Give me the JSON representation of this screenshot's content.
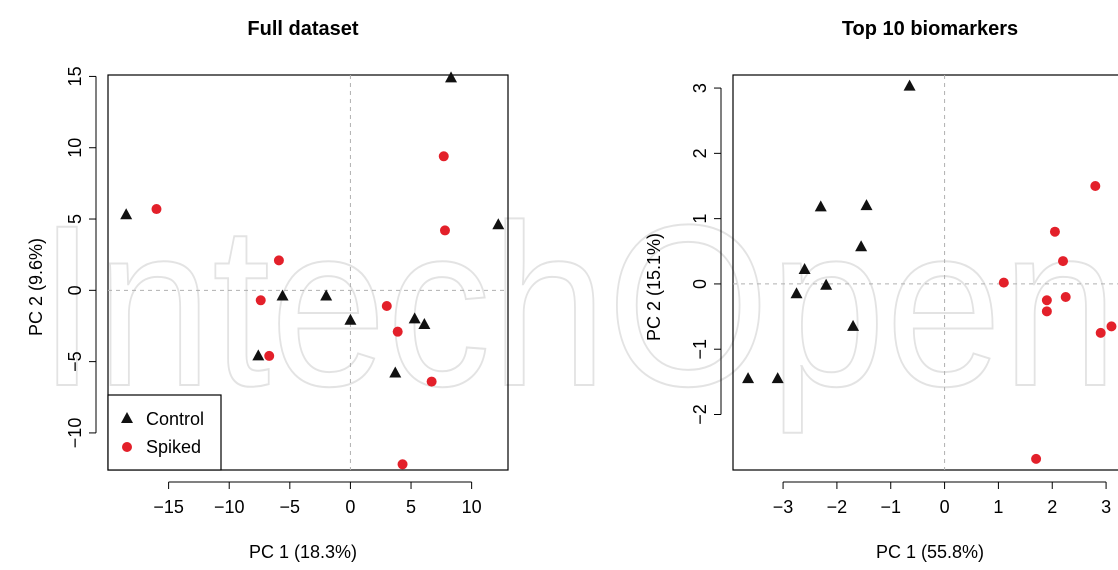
{
  "watermark": "IntechOpen",
  "legend": {
    "control_label": "Control",
    "spiked_label": "Spiked"
  },
  "colors": {
    "control": "#111111",
    "spiked": "#e3202a",
    "zero_line": "#b0b0b0"
  },
  "chart_data": [
    {
      "type": "scatter",
      "title": "Full dataset",
      "xlabel": "PC 1 (18.3%)",
      "ylabel": "PC 2 (9.6%)",
      "xlim": [
        -20,
        13
      ],
      "ylim": [
        -12.6,
        15.1
      ],
      "xticks": [
        -15,
        -10,
        -5,
        0,
        5,
        10
      ],
      "yticks": [
        -10,
        -5,
        0,
        5,
        10,
        15
      ],
      "legend_position": "bottom-left",
      "series": [
        {
          "name": "Control",
          "marker": "triangle",
          "points": [
            [
              -18.5,
              5.3
            ],
            [
              -7.6,
              -4.6
            ],
            [
              -5.6,
              -0.4
            ],
            [
              -2.0,
              -0.4
            ],
            [
              0.0,
              -2.1
            ],
            [
              3.7,
              -5.8
            ],
            [
              5.3,
              -2.0
            ],
            [
              6.1,
              -2.4
            ],
            [
              8.3,
              14.9
            ],
            [
              12.2,
              4.6
            ]
          ]
        },
        {
          "name": "Spiked",
          "marker": "circle",
          "points": [
            [
              -16.0,
              5.7
            ],
            [
              -7.4,
              -0.7
            ],
            [
              -6.7,
              -4.6
            ],
            [
              -5.9,
              2.1
            ],
            [
              3.0,
              -1.1
            ],
            [
              3.9,
              -2.9
            ],
            [
              4.3,
              -12.2
            ],
            [
              6.7,
              -6.4
            ],
            [
              7.7,
              9.4
            ],
            [
              7.8,
              4.2
            ]
          ]
        }
      ]
    },
    {
      "type": "scatter",
      "title": "Top 10 biomarkers",
      "xlabel": "PC 1 (55.8%)",
      "ylabel": "PC 2 (15.1%)",
      "xlim": [
        -3.93,
        3.5
      ],
      "ylim": [
        -2.85,
        3.2
      ],
      "xticks": [
        -3,
        -2,
        -1,
        0,
        1,
        2,
        3
      ],
      "yticks": [
        -2,
        -1,
        0,
        1,
        2,
        3
      ],
      "series": [
        {
          "name": "Control",
          "marker": "triangle",
          "points": [
            [
              -3.65,
              -1.45
            ],
            [
              -3.1,
              -1.45
            ],
            [
              -2.75,
              -0.15
            ],
            [
              -2.6,
              0.22
            ],
            [
              -2.3,
              1.18
            ],
            [
              -2.2,
              -0.02
            ],
            [
              -1.7,
              -0.65
            ],
            [
              -1.55,
              0.57
            ],
            [
              -1.45,
              1.2
            ],
            [
              -0.65,
              3.03
            ]
          ]
        },
        {
          "name": "Spiked",
          "marker": "circle",
          "points": [
            [
              1.1,
              0.02
            ],
            [
              1.9,
              -0.25
            ],
            [
              1.9,
              -0.42
            ],
            [
              2.05,
              0.8
            ],
            [
              2.2,
              0.35
            ],
            [
              2.25,
              -0.2
            ],
            [
              1.7,
              -2.68
            ],
            [
              2.8,
              1.5
            ],
            [
              2.9,
              -0.75
            ],
            [
              3.1,
              -0.65
            ]
          ]
        }
      ]
    }
  ]
}
